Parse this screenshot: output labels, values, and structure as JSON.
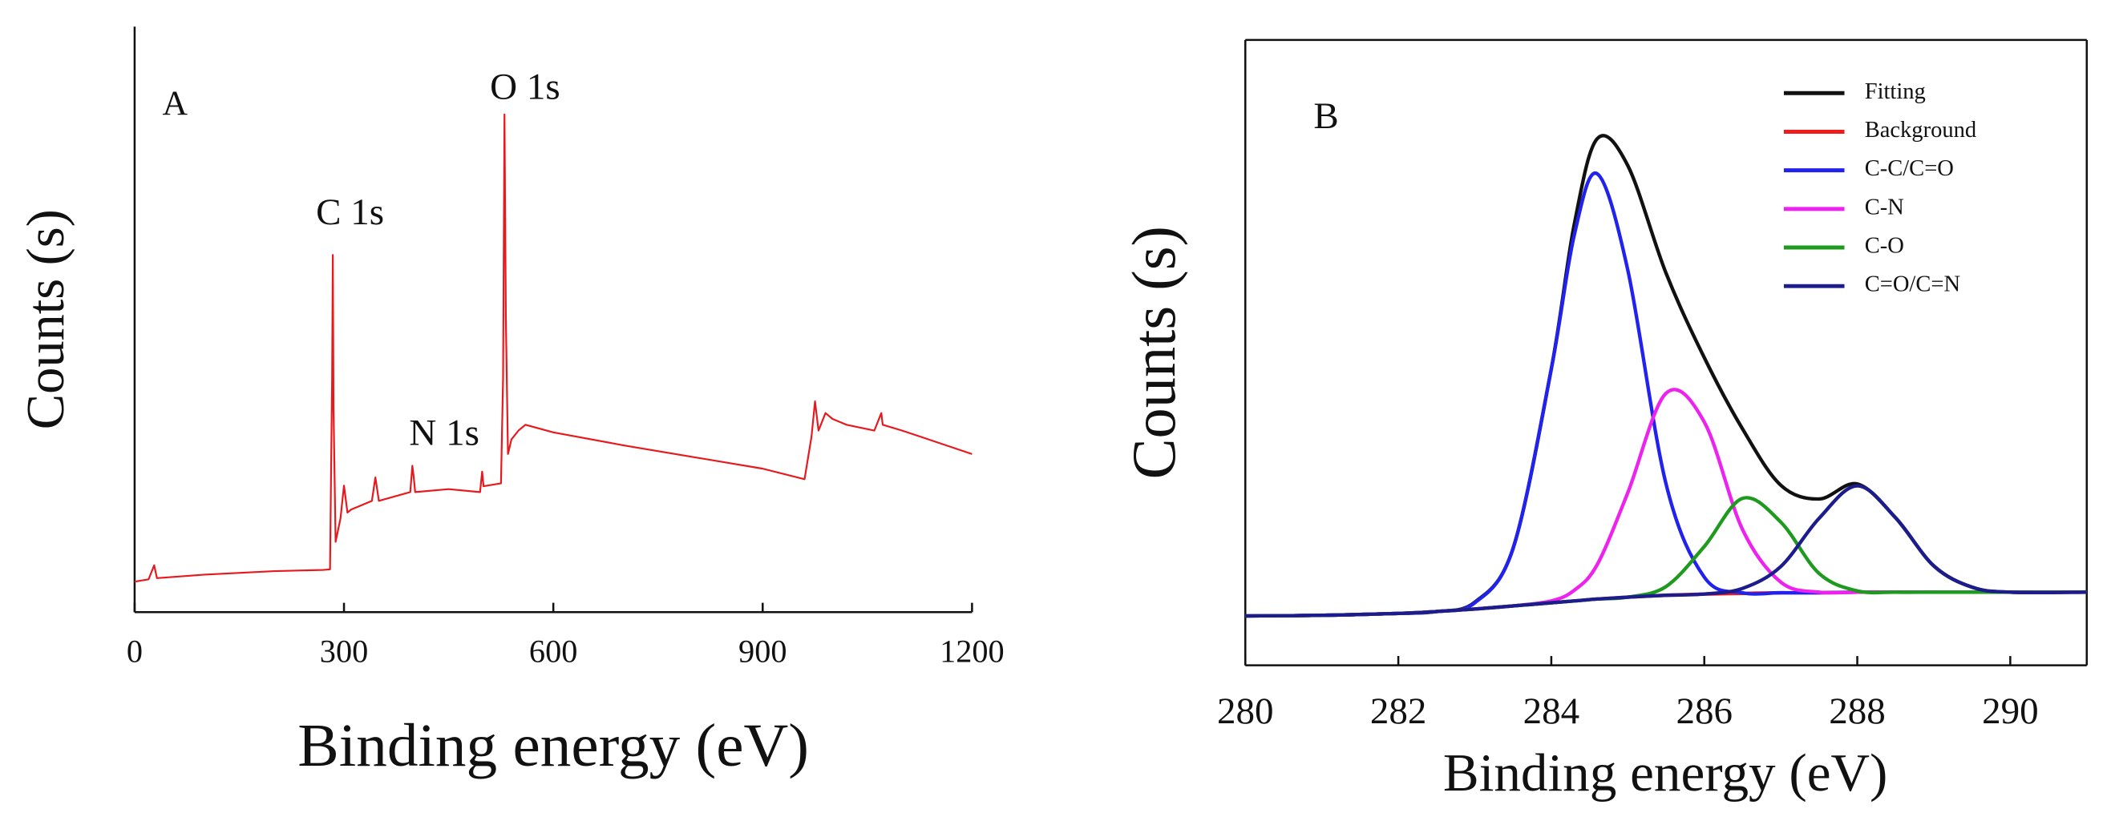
{
  "chart_data": [
    {
      "type": "line",
      "ylabel": "Counts (s)",
      "xlabel": "Binding energy (eV)",
      "annotations": [
        "A",
        "C 1s",
        "N 1s",
        "O 1s"
      ],
      "xlim": [
        0,
        1200
      ],
      "xticks": [
        0,
        300,
        600,
        900,
        1200
      ],
      "ylim": [
        0,
        100
      ],
      "x": [
        0,
        20,
        28,
        32,
        100,
        200,
        270,
        280,
        283,
        284,
        285,
        288,
        295,
        300,
        305,
        310,
        340,
        345,
        350,
        395,
        398,
        400,
        402,
        450,
        495,
        498,
        500,
        525,
        528,
        530,
        532,
        535,
        540,
        550,
        560,
        600,
        700,
        800,
        900,
        960,
        970,
        975,
        980,
        990,
        1000,
        1020,
        1060,
        1070,
        1072,
        1100,
        1200
      ],
      "series": [
        {
          "color": "#e8191c",
          "values": [
            5.2,
            5.6,
            8,
            5.8,
            6.4,
            7,
            7.2,
            7.3,
            40,
            61,
            35,
            12,
            16,
            21.6,
            17,
            17.5,
            19,
            23,
            19,
            20.5,
            25,
            23,
            20.5,
            21,
            20.5,
            24,
            21.5,
            22,
            40,
            85,
            50,
            27,
            29.5,
            31,
            32,
            30.7,
            28.5,
            26.5,
            24.5,
            22.7,
            30,
            36,
            31,
            34,
            33,
            32,
            31,
            34,
            32,
            31,
            27
          ]
        }
      ]
    },
    {
      "type": "line",
      "ylabel": "Counts (s)",
      "xlabel": "Binding energy (eV)",
      "annotations": [
        "B"
      ],
      "xlim": [
        280,
        291
      ],
      "xticks": [
        280,
        282,
        284,
        286,
        288,
        290
      ],
      "ylim": [
        0,
        100
      ],
      "legend": "upper right",
      "x": [
        280,
        281,
        282,
        282.5,
        283,
        283.5,
        284,
        284.3,
        284.6,
        285,
        285.5,
        286,
        286.5,
        287,
        287.5,
        288,
        288.5,
        289,
        289.5,
        290,
        291
      ],
      "series": [
        {
          "name": "Fitting",
          "color": "#111111",
          "values": [
            7.9,
            8.0,
            8.3,
            8.6,
            10.1,
            18.7,
            47.4,
            70.5,
            84.2,
            79.9,
            62.7,
            49.2,
            37.8,
            28.8,
            26.6,
            29,
            23.6,
            15.9,
            12.5,
            11.7,
            11.7
          ]
        },
        {
          "name": "Background",
          "color": "#ee1c1c",
          "values": [
            7.9,
            8.0,
            8.3,
            8.6,
            9,
            9.5,
            10,
            10.3,
            10.6,
            10.9,
            11.2,
            11.4,
            11.5,
            11.6,
            11.6,
            11.7,
            11.7,
            11.7,
            11.7,
            11.7,
            11.7
          ]
        },
        {
          "name": "C-C/C=O",
          "color": "#2222ee",
          "values": [
            7.9,
            8.0,
            8.3,
            8.6,
            10,
            18.7,
            47.4,
            68.8,
            78.6,
            63.2,
            29,
            14.1,
            11.6,
            11.6,
            11.6,
            11.7,
            11.7,
            11.7,
            11.7,
            11.7,
            11.7
          ]
        },
        {
          "name": "C-N",
          "color": "#ee22ee",
          "values": [
            7.9,
            8.0,
            8.3,
            8.6,
            9,
            9.5,
            10.3,
            12,
            16.1,
            27.6,
            43.5,
            38.9,
            21.7,
            13.3,
            11.7,
            11.7,
            11.7,
            11.7,
            11.7,
            11.7,
            11.7
          ]
        },
        {
          "name": "C-O",
          "color": "#1e9a1e",
          "values": [
            7.9,
            8.0,
            8.3,
            8.6,
            9,
            9.5,
            10,
            10.3,
            10.6,
            10.9,
            12.6,
            19,
            26.7,
            22.9,
            14.7,
            11.9,
            11.7,
            11.7,
            11.7,
            11.7,
            11.7
          ]
        },
        {
          "name": "C=O/C=N",
          "color": "#1c1c8c",
          "values": [
            7.9,
            8.0,
            8.3,
            8.6,
            9,
            9.5,
            10,
            10.3,
            10.6,
            10.9,
            11.2,
            11.4,
            12.3,
            15.8,
            23.5,
            28.7,
            23.6,
            15.9,
            12.5,
            11.7,
            11.7
          ]
        }
      ]
    }
  ]
}
